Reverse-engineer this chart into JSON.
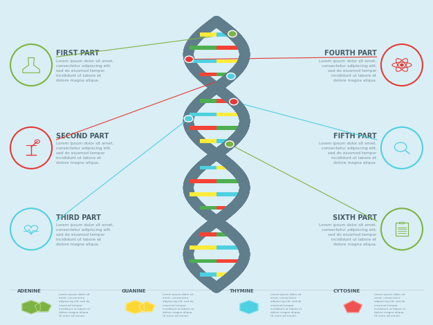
{
  "bg_color": "#daeef5",
  "title_parts_left": [
    "FIRST PART",
    "SECOND PART",
    "THIRD PART"
  ],
  "title_parts_right": [
    "FOURTH PART",
    "FIFTH PART",
    "SIXTH PART"
  ],
  "body_text": "Lorem ipsum dolor sit amet,\nconsectetur adipiscing elit,\nsed do eiusmod tempor\nincididunt ut labore et\ndolore magna aliqua.",
  "icon_colors_left": [
    "#7cb342",
    "#e53935",
    "#4dd0e1"
  ],
  "icon_colors_right": [
    "#e53935",
    "#4dd0e1",
    "#7cb342"
  ],
  "line_colors_left": [
    "#7cb342",
    "#e53935",
    "#4dd0e1"
  ],
  "line_colors_right": [
    "#e53935",
    "#4dd0e1",
    "#7cb342"
  ],
  "dna_strand_color": "#607d8b",
  "dna_bar_colors": [
    "#f44336",
    "#ffeb3b",
    "#4caf50",
    "#4dd0e1"
  ],
  "nucleotide_labels": [
    "ADENINE",
    "GUANINE",
    "THYMINE",
    "CYTOSINE"
  ],
  "nucleotide_colors": [
    "#7cb342",
    "#fdd835",
    "#4dd0e1",
    "#ef5350"
  ],
  "text_color_dark": "#455a64",
  "text_color_gray": "#78909c",
  "connector_dot_colors": [
    "#7cb342",
    "#e53935",
    "#4dd0e1",
    "#e53935",
    "#4dd0e1",
    "#7cb342"
  ],
  "small_lorem": "Lorem ipsum dolor sit amet,\nconsectetur adipiscing elit,\nsed do eiusmod tempor\nincididunt ut labore et\ndolore magna aliqua.",
  "tiny_lorem": "Lorem ipsum dolor sit\namet, consectetur\nadipiscing elit, sed do\neiusmod tempor\nincididunt ut labore et\ndolore magna aliqua.\nUt enim ad minim."
}
